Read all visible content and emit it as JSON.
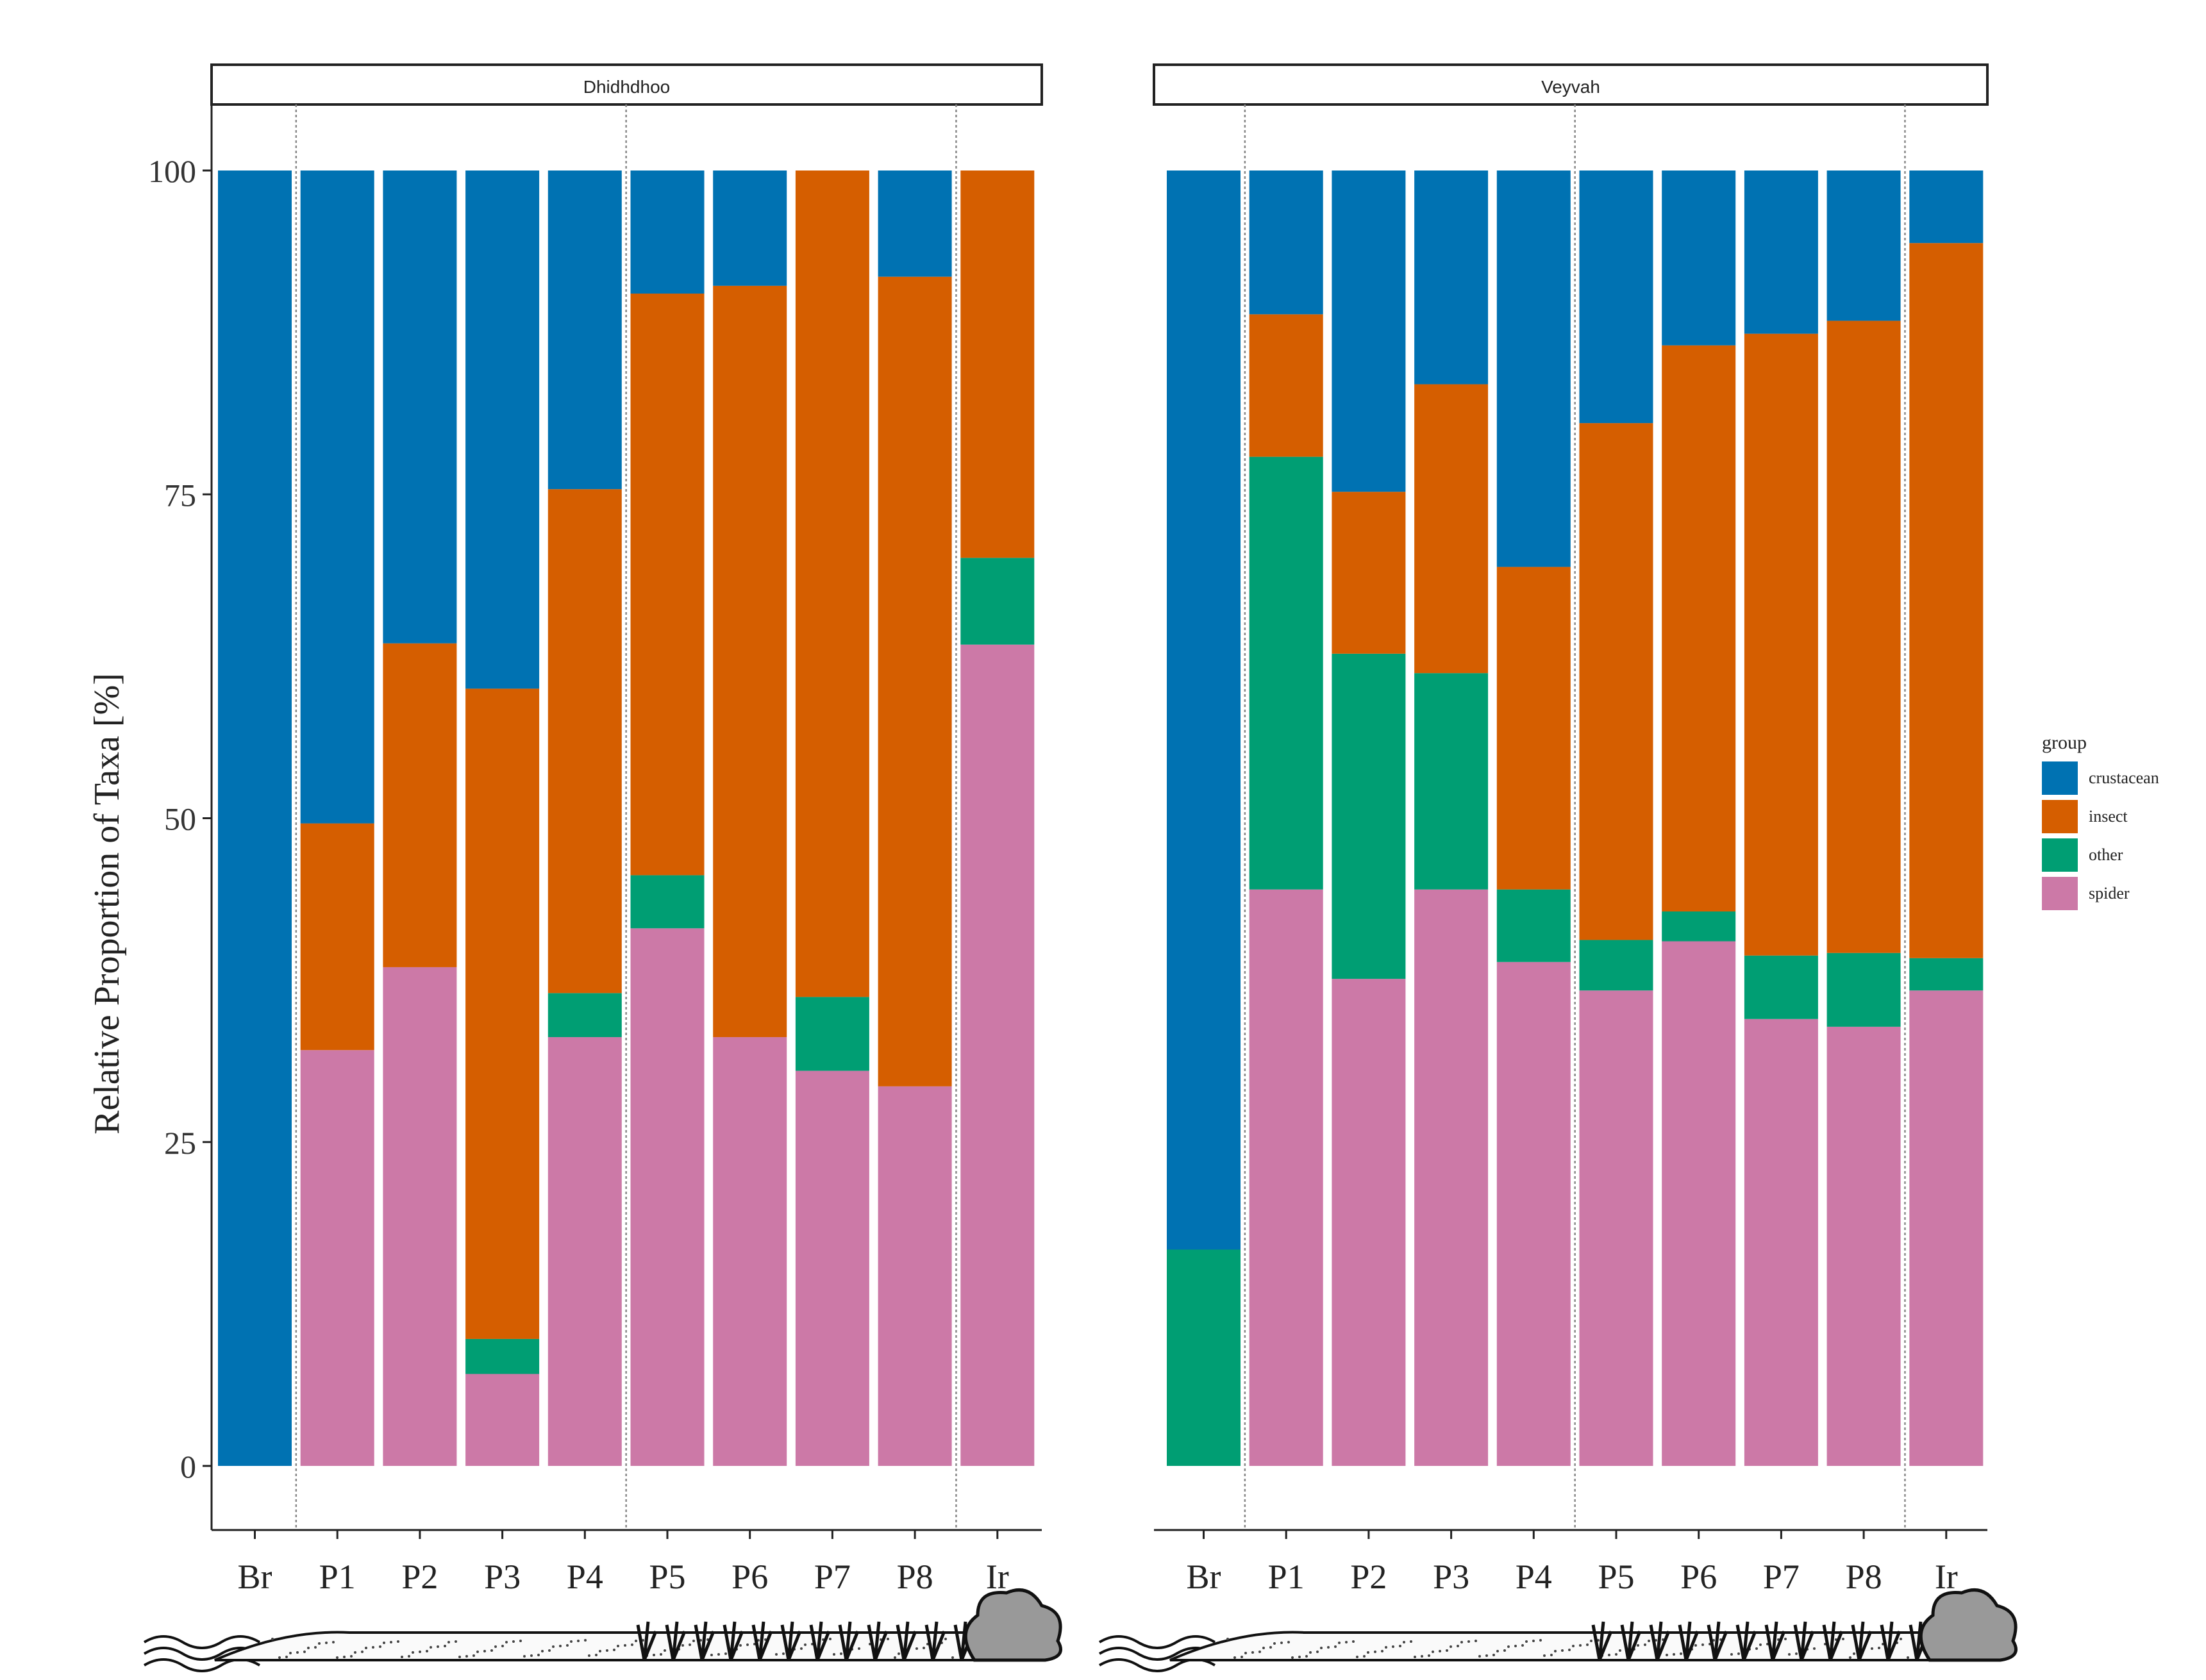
{
  "chart_data": [
    {
      "panel": "Dhidhdhoo",
      "type": "bar",
      "stacked": true,
      "categories": [
        "Br",
        "P1",
        "P2",
        "P3",
        "P4",
        "P5",
        "P6",
        "P7",
        "P8",
        "Ir"
      ],
      "series": [
        {
          "name": "spider",
          "values": [
            0,
            32.1,
            38.5,
            7.1,
            33.1,
            41.5,
            33.1,
            30.5,
            29.3,
            63.4
          ]
        },
        {
          "name": "other",
          "values": [
            0,
            0,
            0,
            2.7,
            3.4,
            4.1,
            0,
            5.7,
            0,
            6.7
          ]
        },
        {
          "name": "insect",
          "values": [
            0,
            17.5,
            25.0,
            50.2,
            38.9,
            44.9,
            58.0,
            63.8,
            62.5,
            29.9
          ]
        },
        {
          "name": "crustacean",
          "values": [
            100,
            50.4,
            36.5,
            40.0,
            24.6,
            9.5,
            8.9,
            0,
            8.2,
            0
          ]
        }
      ]
    },
    {
      "panel": "Veyvah",
      "type": "bar",
      "stacked": true,
      "categories": [
        "Br",
        "P1",
        "P2",
        "P3",
        "P4",
        "P5",
        "P6",
        "P7",
        "P8",
        "Ir"
      ],
      "series": [
        {
          "name": "spider",
          "values": [
            0,
            44.5,
            37.6,
            44.5,
            38.9,
            36.7,
            40.5,
            34.5,
            33.9,
            36.7
          ]
        },
        {
          "name": "other",
          "values": [
            16.7,
            33.4,
            25.1,
            16.7,
            5.6,
            3.9,
            2.3,
            4.9,
            5.7,
            2.5
          ]
        },
        {
          "name": "insect",
          "values": [
            0,
            11.0,
            12.5,
            22.3,
            24.9,
            39.9,
            43.7,
            48.0,
            48.8,
            55.2
          ]
        },
        {
          "name": "crustacean",
          "values": [
            83.3,
            11.1,
            24.8,
            16.5,
            30.6,
            19.5,
            13.5,
            12.6,
            11.6,
            5.6
          ]
        }
      ]
    }
  ],
  "ylabel": "Relative Proportion of Taxa [%]",
  "ylim": [
    0,
    100
  ],
  "yticks": [
    0,
    25,
    50,
    75,
    100
  ],
  "legend": {
    "title": "group",
    "position": "right",
    "entries": [
      "crustacean",
      "insect",
      "other",
      "spider"
    ]
  },
  "colors": {
    "crustacean": "#0072B2",
    "insect": "#D55E00",
    "other": "#009E73",
    "spider": "#CC79A7"
  }
}
